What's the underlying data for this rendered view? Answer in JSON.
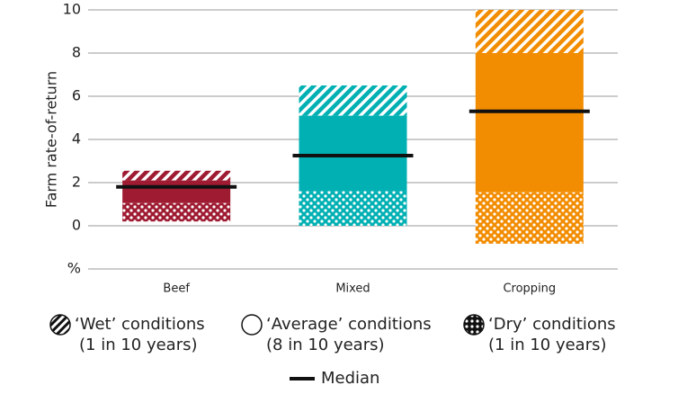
{
  "chart_data": {
    "type": "range_bar",
    "y_label": "Farm rate-of-return",
    "categories": [
      "Beef",
      "Mixed",
      "Cropping"
    ],
    "colors": [
      "#9e1b32",
      "#00b0b3",
      "#f28c00"
    ],
    "ylim": [
      -2,
      10
    ],
    "yticks": [
      {
        "value": -2,
        "label": "%"
      },
      0,
      2,
      4,
      6,
      8,
      10
    ],
    "grid": true,
    "series": [
      {
        "name": "‘Wet’ conditions",
        "note": "(1 in 10 years)",
        "pattern": "stripes",
        "low": [
          2.1,
          5.1,
          8.0
        ],
        "high": [
          2.55,
          6.5,
          10
        ]
      },
      {
        "name": "‘Average’ conditions",
        "note": "(8 in 10 years)",
        "pattern": "solid",
        "low": [
          1.05,
          1.6,
          1.55
        ],
        "high": [
          2.1,
          5.1,
          8.0
        ]
      },
      {
        "name": "‘Dry’ conditions",
        "note": "(1 in 10 years)",
        "pattern": "dots",
        "low": [
          0.2,
          0.0,
          -0.83
        ],
        "high": [
          1.05,
          1.6,
          1.55
        ]
      }
    ],
    "median": {
      "name": "Median",
      "color": "#111111",
      "values": [
        1.8,
        3.25,
        5.3
      ]
    }
  }
}
